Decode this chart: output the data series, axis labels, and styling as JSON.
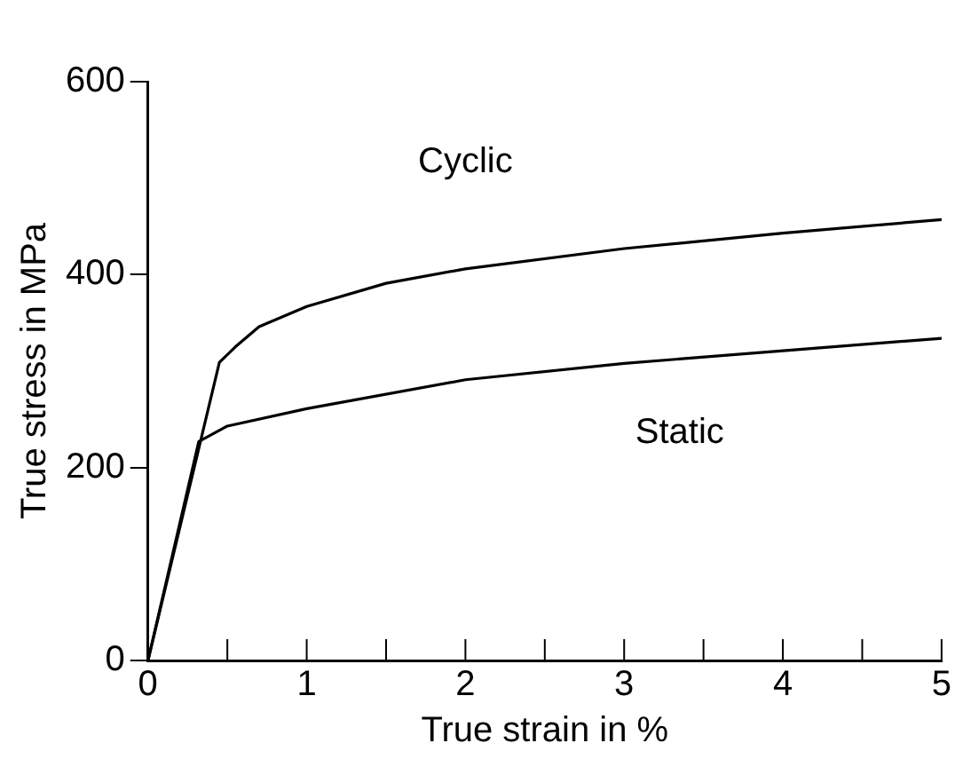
{
  "chart_data": {
    "type": "line",
    "xlabel": "True strain in %",
    "ylabel": "True stress in MPa",
    "xlim": [
      0,
      5
    ],
    "ylim": [
      0,
      600
    ],
    "xticks": [
      0,
      {
        "value": 0.5,
        "label": null
      },
      1,
      {
        "value": 1.5,
        "label": null
      },
      2,
      {
        "value": 2.5,
        "label": null
      },
      3,
      {
        "value": 3.5,
        "label": null
      },
      4,
      {
        "value": 4.5,
        "label": null
      },
      5
    ],
    "yticks": [
      0,
      200,
      400,
      600
    ],
    "marker": "none",
    "line_style": "solid",
    "legend": false,
    "series": [
      {
        "name": "Cyclic",
        "color": "#000000",
        "x": [
          0,
          0.45,
          0.55,
          0.7,
          1,
          1.5,
          2,
          3,
          4,
          5
        ],
        "values": [
          0,
          309,
          325,
          346,
          367,
          391,
          406,
          427,
          443,
          457
        ]
      },
      {
        "name": "Static",
        "color": "#000000",
        "x": [
          0,
          0.32,
          0.5,
          1,
          2,
          3,
          4,
          5
        ],
        "values": [
          0,
          227,
          243,
          261,
          291,
          308,
          321,
          334
        ]
      }
    ]
  }
}
